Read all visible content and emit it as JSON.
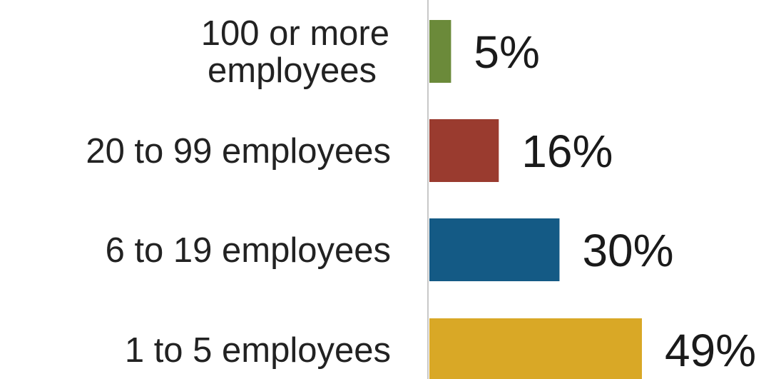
{
  "chart_data": {
    "type": "bar",
    "orientation": "horizontal",
    "categories": [
      [
        "100 or more",
        "employees"
      ],
      [
        "20 to 99 employees"
      ],
      [
        "6 to 19 employees"
      ],
      [
        "1 to 5 employees"
      ]
    ],
    "values": [
      5,
      16,
      30,
      49
    ],
    "value_labels": [
      "5%",
      "16%",
      "30%",
      "49%"
    ],
    "colors": [
      "#6b8a3a",
      "#9a3b2f",
      "#145a85",
      "#d9a826"
    ],
    "axis_color": "#c8c8c8",
    "xlim": [
      0,
      49
    ]
  }
}
